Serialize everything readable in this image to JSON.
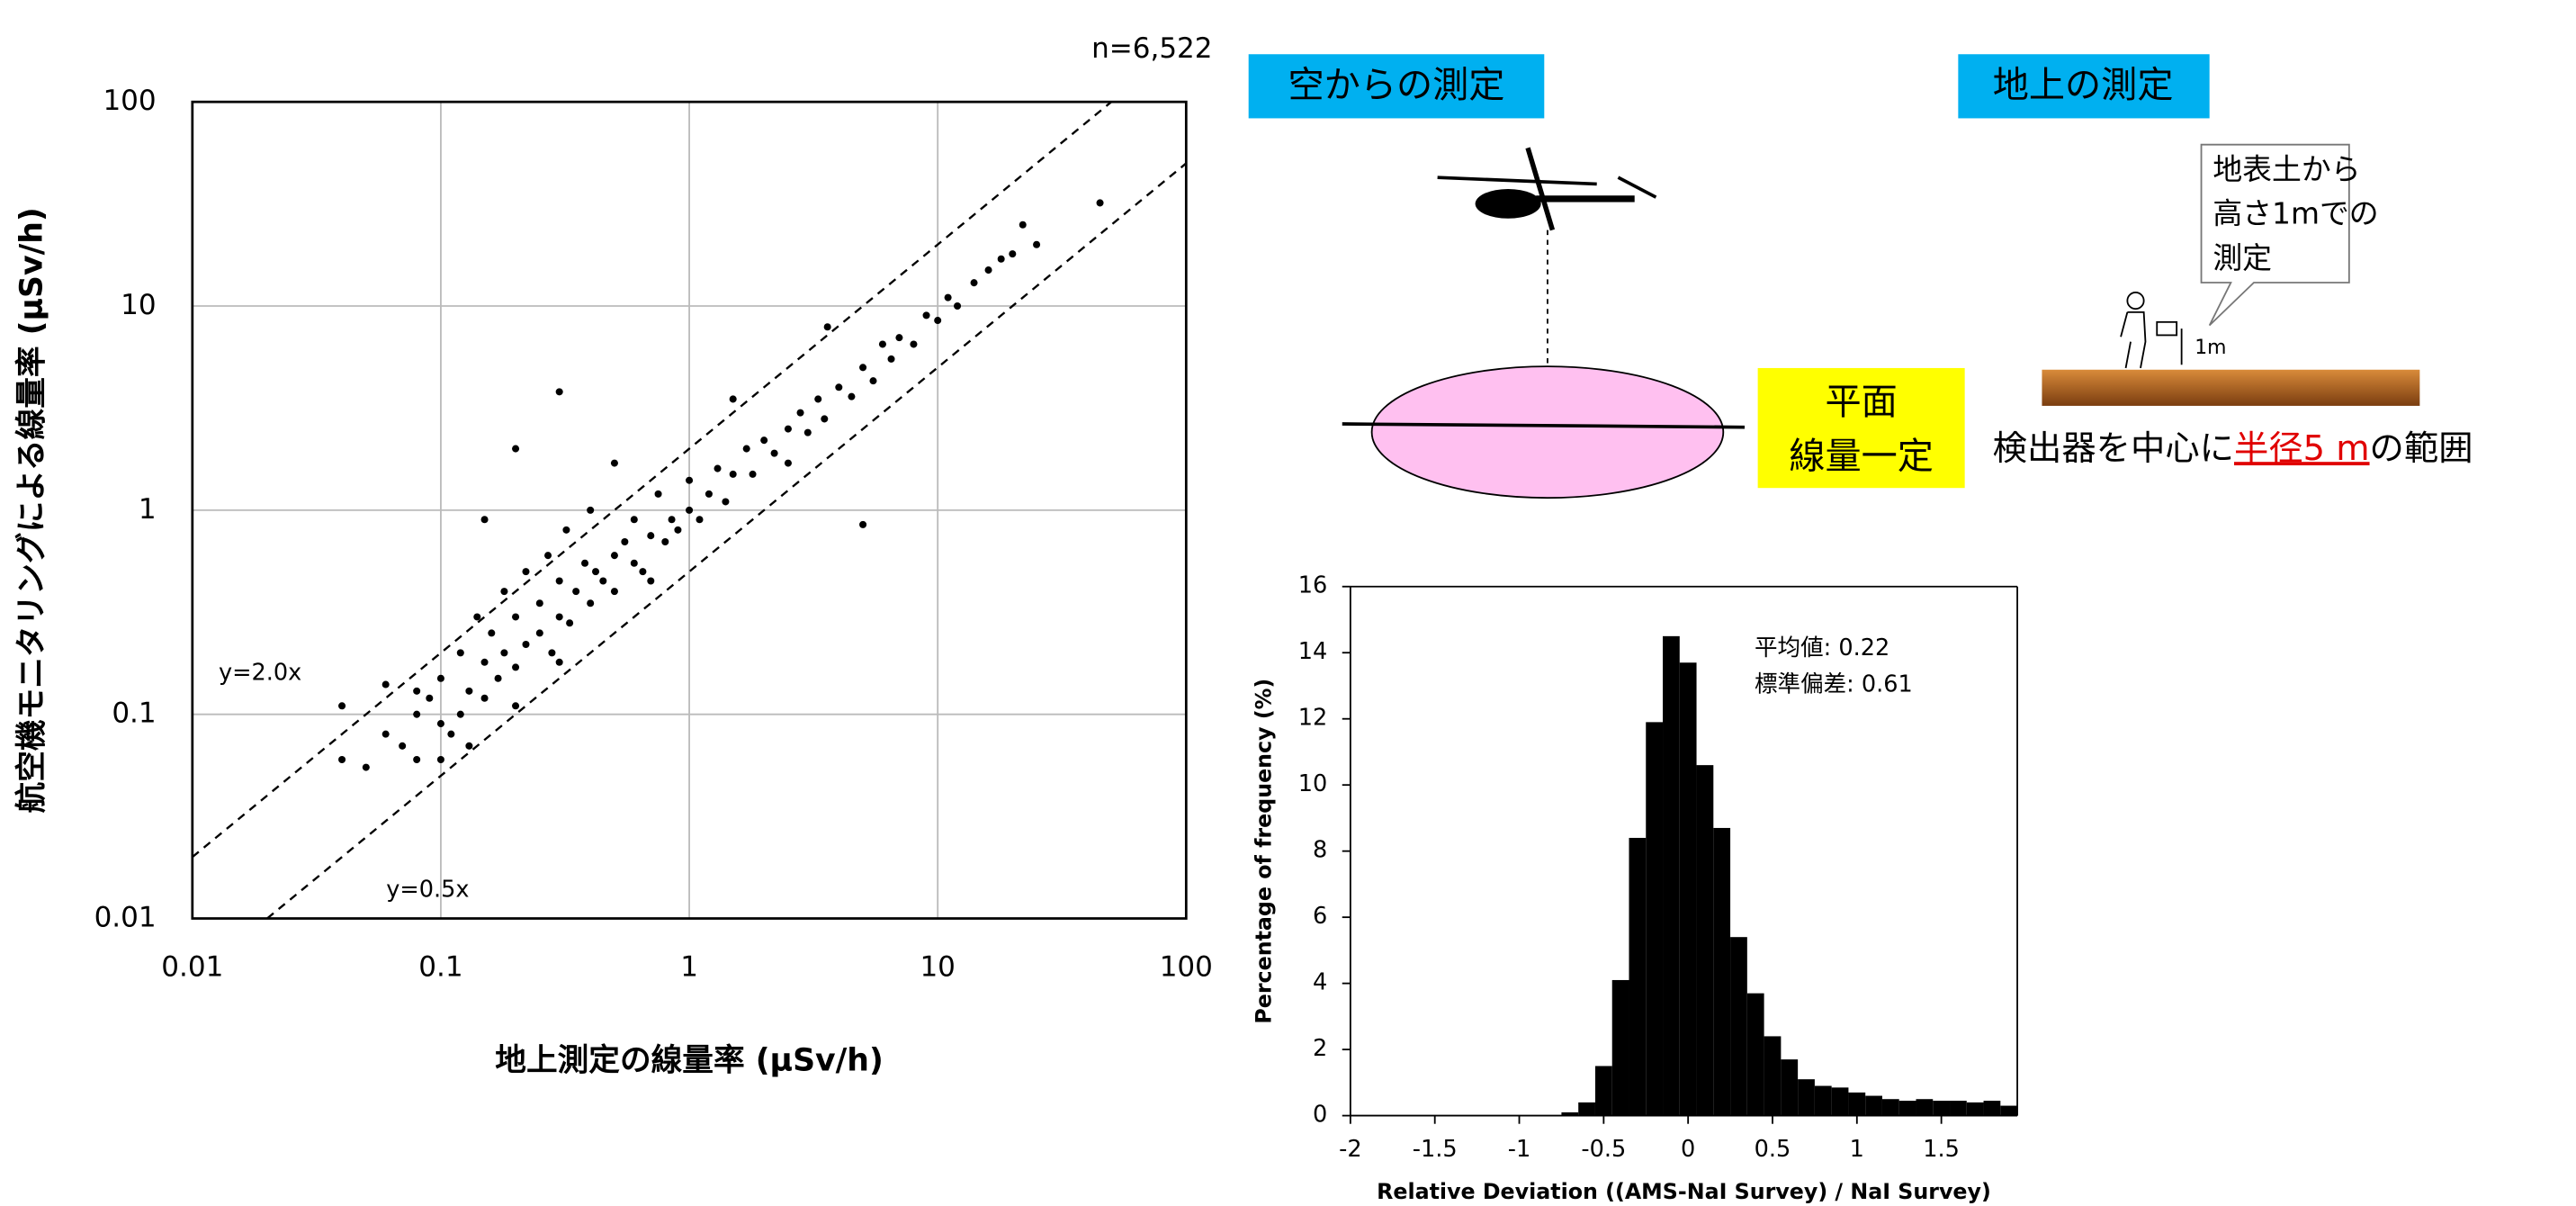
{
  "chart_data": [
    {
      "type": "scatter",
      "title_note": "n=6,522",
      "x_label": "地上測定の線量率 (μSv/h)",
      "y_label": "航空機モニタリングによる線量率 (μSv/h)",
      "log_x": true,
      "log_y": true,
      "grid": true,
      "color": "#000000",
      "xlim": [
        0.01,
        100
      ],
      "ylim": [
        0.01,
        100
      ],
      "xticks": [
        0.01,
        0.1,
        1,
        10,
        100
      ],
      "yticks": [
        0.01,
        0.1,
        1,
        10,
        100
      ],
      "reference_lines": [
        {
          "label": "y=2.0x",
          "slope": 2.0
        },
        {
          "label": "y=0.5x",
          "slope": 0.5
        }
      ],
      "x": [
        0.04,
        0.05,
        0.06,
        0.07,
        0.08,
        0.08,
        0.09,
        0.1,
        0.1,
        0.11,
        0.12,
        0.12,
        0.13,
        0.14,
        0.15,
        0.15,
        0.16,
        0.17,
        0.18,
        0.18,
        0.2,
        0.2,
        0.22,
        0.22,
        0.25,
        0.25,
        0.27,
        0.28,
        0.3,
        0.3,
        0.32,
        0.33,
        0.35,
        0.38,
        0.4,
        0.4,
        0.42,
        0.45,
        0.5,
        0.5,
        0.55,
        0.6,
        0.6,
        0.65,
        0.7,
        0.75,
        0.8,
        0.85,
        0.9,
        1.0,
        1.0,
        1.1,
        1.2,
        1.3,
        1.4,
        1.5,
        1.7,
        1.8,
        2.0,
        2.2,
        2.5,
        2.8,
        3.0,
        3.3,
        3.5,
        4.0,
        4.5,
        5.0,
        5.5,
        6.0,
        6.5,
        7.0,
        8.0,
        9.0,
        10,
        11,
        12,
        14,
        16,
        18,
        20,
        22,
        25,
        0.3,
        0.2,
        3.6,
        5,
        0.15,
        0.06,
        0.1,
        0.2,
        0.5,
        1.5,
        0.08,
        0.13,
        0.3,
        0.7,
        2.5,
        45,
        0.04
      ],
      "values": [
        0.06,
        0.055,
        0.08,
        0.07,
        0.1,
        0.06,
        0.12,
        0.09,
        0.15,
        0.08,
        0.2,
        0.1,
        0.13,
        0.3,
        0.12,
        0.18,
        0.25,
        0.15,
        0.4,
        0.2,
        0.17,
        0.3,
        0.5,
        0.22,
        0.25,
        0.35,
        0.6,
        0.2,
        0.3,
        0.45,
        0.8,
        0.28,
        0.4,
        0.55,
        0.35,
        1.0,
        0.5,
        0.45,
        0.6,
        0.4,
        0.7,
        0.55,
        0.9,
        0.5,
        0.75,
        1.2,
        0.7,
        0.9,
        0.8,
        1.0,
        1.4,
        0.9,
        1.2,
        1.6,
        1.1,
        1.5,
        2.0,
        1.5,
        2.2,
        1.9,
        2.5,
        3.0,
        2.4,
        3.5,
        2.8,
        4.0,
        3.6,
        5.0,
        4.3,
        6.5,
        5.5,
        7.0,
        6.5,
        9.0,
        8.5,
        11,
        10,
        13,
        15,
        17,
        18,
        25,
        20,
        3.8,
        2.0,
        7.9,
        0.85,
        0.9,
        0.14,
        0.06,
        0.11,
        1.7,
        3.5,
        0.13,
        0.07,
        0.18,
        0.45,
        1.7,
        32,
        0.11
      ]
    },
    {
      "type": "histogram",
      "color": "#000000",
      "x_label": "Relative Deviation ((AMS-NaI Survey) / NaI Survey)",
      "y_label": "Percentage of frequency (%)",
      "annotations": [
        "平均値: 0.22",
        "標準偏差: 0.61"
      ],
      "xlim": [
        -2,
        1.95
      ],
      "ylim": [
        0,
        16
      ],
      "xticks": [
        -2,
        -1.5,
        -1,
        -0.5,
        0,
        0.5,
        1,
        1.5
      ],
      "yticks": [
        0,
        2,
        4,
        6,
        8,
        10,
        12,
        14,
        16
      ],
      "bins": [
        -1.95,
        -1.85,
        -1.75,
        -1.65,
        -1.55,
        -1.45,
        -1.35,
        -1.25,
        -1.15,
        -1.05,
        -0.95,
        -0.85,
        -0.75,
        -0.65,
        -0.55,
        -0.45,
        -0.35,
        -0.25,
        -0.15,
        -0.05,
        0.05,
        0.15,
        0.25,
        0.35,
        0.45,
        0.55,
        0.65,
        0.75,
        0.85,
        0.95,
        1.05,
        1.15,
        1.25,
        1.35,
        1.45,
        1.55,
        1.65,
        1.75,
        1.85,
        1.95
      ],
      "values": [
        0,
        0,
        0,
        0,
        0,
        0,
        0,
        0,
        0,
        0,
        0,
        0,
        0.1,
        0.4,
        1.5,
        4.1,
        8.4,
        11.9,
        14.5,
        13.7,
        10.6,
        8.7,
        5.4,
        3.7,
        2.4,
        1.7,
        1.1,
        0.9,
        0.85,
        0.7,
        0.6,
        0.5,
        0.45,
        0.5,
        0.45,
        0.45,
        0.4,
        0.45,
        0.3
      ]
    }
  ],
  "diagram": {
    "air_label": "空からの測定",
    "ground_label": "地上の測定",
    "plane_note": [
      "平面",
      "線量一定"
    ],
    "callout": [
      "地表土から",
      "高さ1mでの",
      "測定"
    ],
    "height_mark": "1m",
    "range_text": [
      "検出器を中心に",
      "半径5 m",
      "の範囲"
    ]
  }
}
